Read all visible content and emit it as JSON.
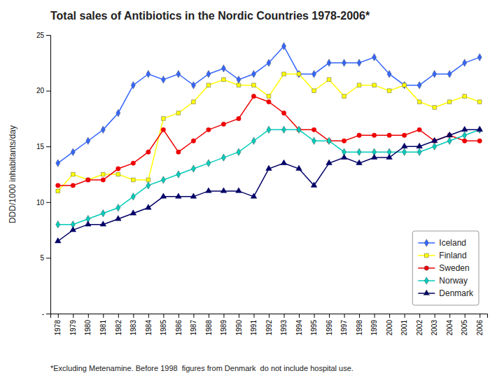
{
  "chart_data": {
    "type": "line",
    "title": "Total sales of Antibiotics in the Nordic Countries 1978-2006*",
    "y_label": "DDD/1000 inhabitants/day",
    "annotations": [
      "*Excluding Metenamine. Before 1998  figures from Denmark  do not include hospital use."
    ],
    "x": [
      1978,
      1979,
      1980,
      1981,
      1982,
      1983,
      1984,
      1985,
      1986,
      1987,
      1988,
      1989,
      1990,
      1991,
      1992,
      1993,
      1994,
      1995,
      1996,
      1997,
      1998,
      1999,
      2000,
      2001,
      2002,
      2003,
      2004,
      2005,
      2006
    ],
    "series": [
      {
        "name": "Iceland",
        "color": "#3366FF",
        "marker": "diamond",
        "values": [
          13.5,
          14.5,
          15.5,
          16.5,
          18.0,
          20.5,
          21.5,
          21.0,
          21.5,
          20.5,
          21.5,
          22.0,
          21.0,
          21.5,
          22.5,
          24.0,
          21.5,
          21.5,
          22.5,
          22.5,
          22.5,
          23.0,
          21.5,
          20.5,
          20.5,
          21.5,
          21.5,
          22.5,
          23.0
        ]
      },
      {
        "name": "Finland",
        "color": "#FFFF00",
        "marker": "square",
        "values": [
          11.0,
          12.5,
          12.0,
          12.5,
          12.5,
          12.0,
          12.0,
          17.5,
          18.0,
          19.0,
          20.5,
          21.0,
          20.5,
          20.5,
          19.5,
          21.5,
          21.5,
          20.0,
          21.0,
          19.5,
          20.5,
          20.5,
          20.0,
          20.5,
          19.0,
          18.5,
          19.0,
          19.5,
          19.0
        ]
      },
      {
        "name": "Sweden",
        "color": "#EE0000",
        "marker": "circle",
        "values": [
          11.5,
          11.5,
          12.0,
          12.0,
          13.0,
          13.5,
          14.5,
          16.5,
          14.5,
          15.5,
          16.5,
          17.0,
          17.5,
          19.5,
          19.0,
          18.0,
          16.5,
          16.5,
          15.5,
          15.5,
          16.0,
          16.0,
          16.0,
          16.0,
          16.5,
          15.5,
          16.0,
          15.5,
          15.5
        ]
      },
      {
        "name": "Norway",
        "color": "#00CCBB",
        "marker": "diamond",
        "values": [
          8.0,
          8.0,
          8.5,
          9.0,
          9.5,
          10.5,
          11.5,
          12.0,
          12.5,
          13.0,
          13.5,
          14.0,
          14.5,
          15.5,
          16.5,
          16.5,
          16.5,
          15.5,
          15.5,
          14.5,
          14.5,
          14.5,
          14.5,
          14.5,
          14.5,
          15.0,
          15.5,
          16.0,
          16.5
        ]
      },
      {
        "name": "Denmark",
        "color": "#000066",
        "marker": "triangle",
        "values": [
          6.5,
          7.5,
          8.0,
          8.0,
          8.5,
          9.0,
          9.5,
          10.5,
          10.5,
          10.5,
          11.0,
          11.0,
          11.0,
          10.5,
          13.0,
          13.5,
          13.0,
          11.5,
          13.5,
          14.0,
          13.5,
          14.0,
          14.0,
          15.0,
          15.0,
          15.5,
          16.0,
          16.5,
          16.5
        ]
      }
    ],
    "xlim": [
      1977.5,
      2006.5
    ],
    "xticks": [
      1978,
      1979,
      1980,
      1981,
      1982,
      1983,
      1984,
      1985,
      1986,
      1987,
      1988,
      1989,
      1990,
      1991,
      1992,
      1993,
      1994,
      1995,
      1996,
      1997,
      1998,
      1999,
      2000,
      2001,
      2002,
      2003,
      2004,
      2005,
      2006
    ],
    "ylim": [
      0,
      25
    ],
    "yticks": [
      {
        "value": 0,
        "label": "-"
      },
      5,
      10,
      15,
      20,
      25
    ],
    "grid": false,
    "legend": "lower right"
  }
}
